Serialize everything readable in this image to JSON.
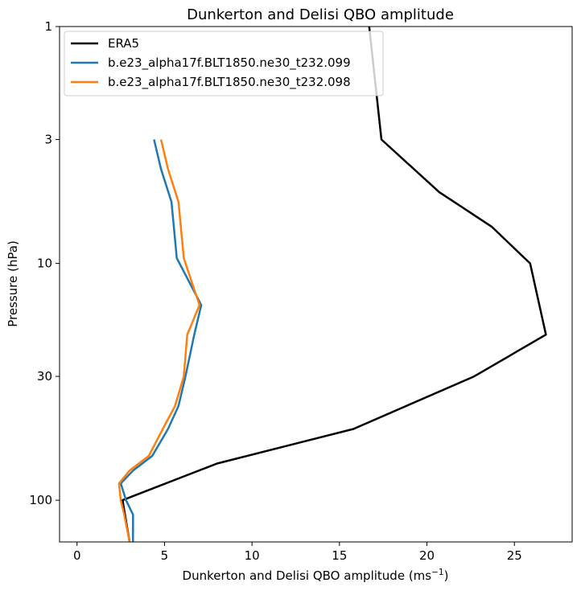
{
  "chart_data": {
    "type": "line",
    "title": "Dunkerton and Delisi QBO amplitude",
    "xlabel_main": "Dunkerton and Delisi QBO amplitude (ms",
    "xlabel_sup": "−1",
    "xlabel_close": ")",
    "ylabel": "Pressure (hPa)",
    "xlim": [
      -1,
      28.3
    ],
    "ylim": [
      150,
      1
    ],
    "y_scale": "log",
    "y_inverted": true,
    "grid": false,
    "legend_position": "top-left",
    "xticks": [
      0,
      5,
      10,
      15,
      20,
      25
    ],
    "xtick_labels": [
      "0",
      "5",
      "10",
      "15",
      "20",
      "25"
    ],
    "yticks": [
      1,
      3,
      10,
      30,
      100
    ],
    "ytick_labels": [
      "1",
      "3",
      "10",
      "30",
      "100"
    ],
    "series": [
      {
        "name": "ERA5",
        "color": "#000000",
        "points": [
          [
            16.7,
            1
          ],
          [
            17.4,
            3
          ],
          [
            20.7,
            5
          ],
          [
            23.7,
            7
          ],
          [
            25.9,
            10
          ],
          [
            26.8,
            20
          ],
          [
            22.7,
            30
          ],
          [
            15.8,
            50
          ],
          [
            8.0,
            70
          ],
          [
            2.6,
            100
          ],
          [
            3.0,
            150
          ]
        ]
      },
      {
        "name": "b.e23_alpha17f.BLT1850.ne30_t232.099",
        "color": "#1f77b4",
        "points": [
          [
            4.4,
            3
          ],
          [
            4.8,
            4
          ],
          [
            5.4,
            5.5
          ],
          [
            5.7,
            9.5
          ],
          [
            7.1,
            15
          ],
          [
            6.7,
            20
          ],
          [
            6.2,
            30
          ],
          [
            5.8,
            40
          ],
          [
            5.2,
            50
          ],
          [
            4.3,
            65
          ],
          [
            3.2,
            75
          ],
          [
            2.5,
            85
          ],
          [
            2.8,
            100
          ],
          [
            3.2,
            115
          ],
          [
            3.2,
            150
          ]
        ]
      },
      {
        "name": "b.e23_alpha17f.BLT1850.ne30_t232.098",
        "color": "#ff7f0e",
        "points": [
          [
            4.8,
            3
          ],
          [
            5.2,
            4
          ],
          [
            5.8,
            5.5
          ],
          [
            6.1,
            9.5
          ],
          [
            7.0,
            15
          ],
          [
            6.3,
            20
          ],
          [
            6.1,
            30
          ],
          [
            5.6,
            40
          ],
          [
            4.9,
            50
          ],
          [
            4.1,
            65
          ],
          [
            3.0,
            75
          ],
          [
            2.4,
            85
          ],
          [
            2.5,
            100
          ],
          [
            2.7,
            115
          ],
          [
            3.0,
            150
          ]
        ]
      }
    ]
  }
}
